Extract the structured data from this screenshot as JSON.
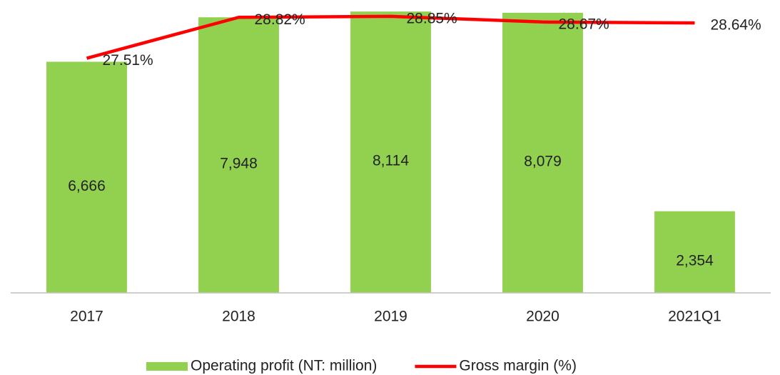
{
  "chart_data": {
    "type": "bar",
    "categories": [
      "2017",
      "2018",
      "2019",
      "2020",
      "2021Q1"
    ],
    "series": [
      {
        "name": "Operating profit (NT: million)",
        "type": "bar",
        "color": "#92d050",
        "values": [
          6666,
          7948,
          8114,
          8079,
          2354
        ],
        "value_labels": [
          "6,666",
          "7,948",
          "8,114",
          "8,079",
          "2,354"
        ]
      },
      {
        "name": "Gross margin (%)",
        "type": "line",
        "axis": "y2",
        "color": "#ff0000",
        "values": [
          27.51,
          28.82,
          28.85,
          28.67,
          28.64
        ],
        "value_labels": [
          "27.51%",
          "28.82%",
          "28.85%",
          "28.67%",
          "28.64%"
        ]
      }
    ],
    "ylim": [
      0,
      8200
    ],
    "y2lim": [
      20,
      29.1
    ]
  }
}
